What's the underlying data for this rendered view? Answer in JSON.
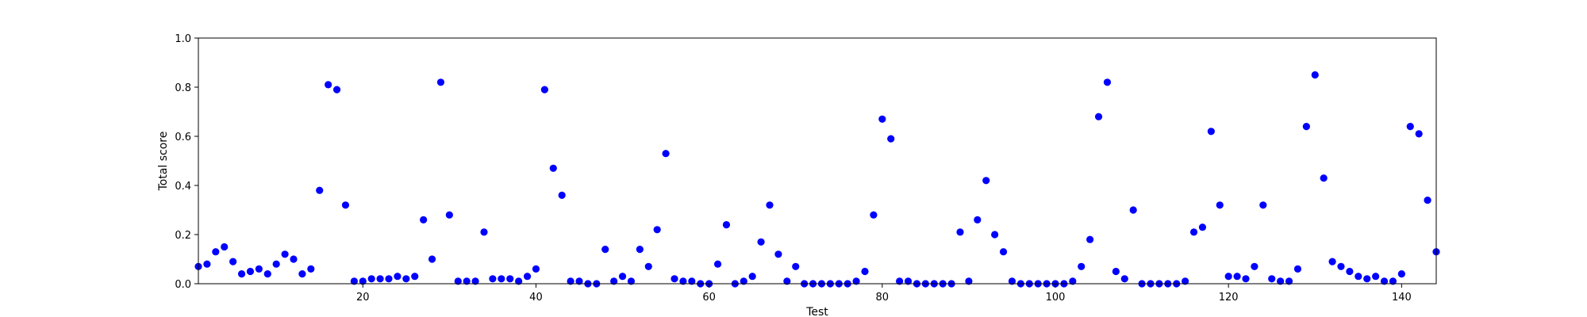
{
  "chart_data": {
    "type": "scatter",
    "title": "",
    "xlabel": "Test",
    "ylabel": "Total score",
    "xlim": [
      1,
      144
    ],
    "ylim": [
      0,
      1.0
    ],
    "x_ticks": [
      20,
      40,
      60,
      80,
      100,
      120,
      140
    ],
    "x_tick_labels": [
      "20",
      "40",
      "60",
      "80",
      "100",
      "120",
      "140"
    ],
    "y_ticks": [
      0,
      0.2,
      0.4,
      0.6,
      0.8,
      1.0
    ],
    "y_tick_labels": [
      "0.0",
      "0.2",
      "0.4",
      "0.6",
      "0.8",
      "1.0"
    ],
    "grid": false,
    "marker_color": "#0000ff",
    "series": [
      {
        "x": [
          1,
          2,
          3,
          4,
          5,
          6,
          7,
          8,
          9,
          10,
          11,
          12,
          13,
          14,
          15,
          16,
          17,
          18,
          19,
          20,
          21,
          22,
          23,
          24,
          25,
          26,
          27,
          28,
          29,
          30,
          31,
          32,
          33,
          34,
          35,
          36,
          37,
          38,
          39,
          40,
          41,
          42,
          43,
          44,
          45,
          46,
          47,
          48,
          49,
          50,
          51,
          52,
          53,
          54,
          55,
          56,
          57,
          58,
          59,
          60,
          61,
          62,
          63,
          64,
          65,
          66,
          67,
          68,
          69,
          70,
          71,
          72,
          73,
          74,
          75,
          76,
          77,
          78,
          79,
          80,
          81,
          82,
          83,
          84,
          85,
          86,
          87,
          88,
          89,
          90,
          91,
          92,
          93,
          94,
          95,
          96,
          97,
          98,
          99,
          100,
          101,
          102,
          103,
          104,
          105,
          106,
          107,
          108,
          109,
          110,
          111,
          112,
          113,
          114,
          115,
          116,
          117,
          118,
          119,
          120,
          121,
          122,
          123,
          124,
          125,
          126,
          127,
          128,
          129,
          130,
          131,
          132,
          133,
          134,
          135,
          136,
          137,
          138,
          139,
          140,
          141,
          142,
          143,
          144
        ],
        "y": [
          0.07,
          0.08,
          0.13,
          0.15,
          0.09,
          0.04,
          0.05,
          0.06,
          0.04,
          0.08,
          0.12,
          0.1,
          0.04,
          0.06,
          0.38,
          0.81,
          0.79,
          0.32,
          0.01,
          0.01,
          0.02,
          0.02,
          0.02,
          0.03,
          0.02,
          0.03,
          0.26,
          0.1,
          0.82,
          0.28,
          0.01,
          0.01,
          0.01,
          0.21,
          0.02,
          0.02,
          0.02,
          0.01,
          0.03,
          0.06,
          0.79,
          0.47,
          0.36,
          0.01,
          0.01,
          0.0,
          0.0,
          0.14,
          0.01,
          0.03,
          0.01,
          0.14,
          0.07,
          0.22,
          0.53,
          0.02,
          0.01,
          0.01,
          0.0,
          0.0,
          0.08,
          0.24,
          0.0,
          0.01,
          0.03,
          0.17,
          0.32,
          0.12,
          0.01,
          0.07,
          0.0,
          0.0,
          0.0,
          0.0,
          0.0,
          0.0,
          0.01,
          0.05,
          0.28,
          0.67,
          0.59,
          0.01,
          0.01,
          0.0,
          0.0,
          0.0,
          0.0,
          0.0,
          0.21,
          0.01,
          0.26,
          0.42,
          0.2,
          0.13,
          0.01,
          0.0,
          0.0,
          0.0,
          0.0,
          0.0,
          0.0,
          0.01,
          0.07,
          0.18,
          0.68,
          0.82,
          0.05,
          0.02,
          0.3,
          0.0,
          0.0,
          0.0,
          0.0,
          0.0,
          0.01,
          0.21,
          0.23,
          0.62,
          0.32,
          0.03,
          0.03,
          0.02,
          0.07,
          0.32,
          0.02,
          0.01,
          0.01,
          0.06,
          0.64,
          0.85,
          0.43,
          0.09,
          0.07,
          0.05,
          0.03,
          0.02,
          0.03,
          0.01,
          0.01,
          0.04,
          0.64,
          0.61,
          0.34,
          0.13
        ]
      }
    ]
  }
}
